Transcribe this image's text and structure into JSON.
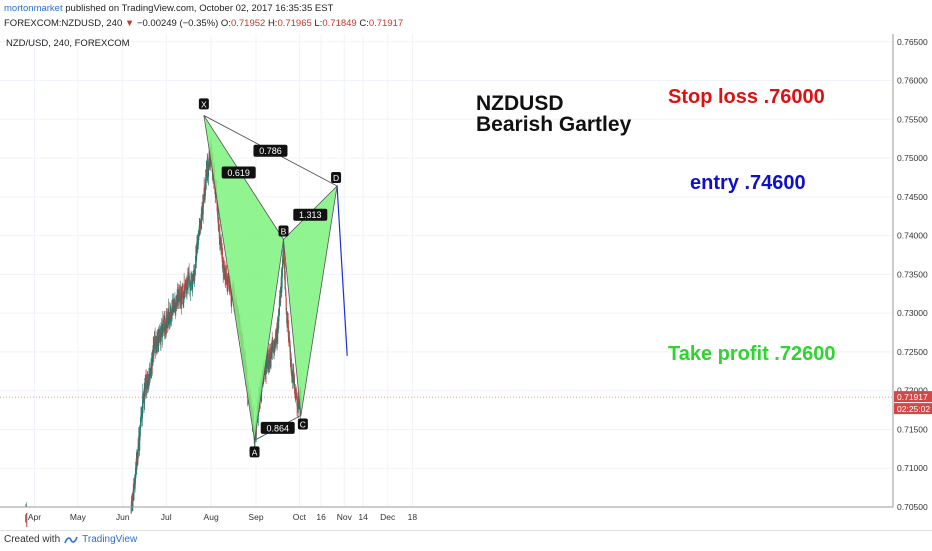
{
  "header": {
    "username": "mortonmarket",
    "published_text": "published on TradingView.com, October 02, 2017 16:35:35 EST",
    "symbol_interval": "FOREXCOM:NZDUSD, 240",
    "change_arrow": "▼",
    "change": "−0.00249 (−0.35%)",
    "open_label": "O:",
    "open": "0.71952",
    "high_label": "H:",
    "high": "0.71965",
    "low_label": "L:",
    "low": "0.71849",
    "close_label": "C:",
    "close": "0.71917"
  },
  "footer": {
    "created_with": "Created with",
    "brand": "TradingView"
  },
  "chart_data": {
    "type": "candlestick",
    "legend": "NZD/USD, 240, FOREXCOM",
    "ylim": [
      0.705,
      0.766
    ],
    "y_ticks": [
      "0.76500",
      "0.76000",
      "0.75500",
      "0.75000",
      "0.74500",
      "0.74000",
      "0.73500",
      "0.73000",
      "0.72500",
      "0.72000",
      "0.71500",
      "0.71000",
      "0.70500"
    ],
    "x_ticks": [
      "Apr",
      "May",
      "Jun",
      "Jul",
      "Aug",
      "Sep",
      "Oct",
      "16",
      "Nov",
      "14",
      "Dec",
      "18"
    ],
    "current_price_label": "0.71917",
    "countdown_label": "02:25:02",
    "current_price": 0.71917,
    "pattern": {
      "title_line1": "NZDUSD",
      "title_line2": "Bearish Gartley",
      "points": [
        {
          "name": "X",
          "date": "Jul 27",
          "price": 0.7555
        },
        {
          "name": "A",
          "date": "Aug 31",
          "price": 0.7136
        },
        {
          "name": "B",
          "date": "Sep 20",
          "price": 0.7395
        },
        {
          "name": "C",
          "date": "Oct 2",
          "price": 0.7168
        },
        {
          "name": "D",
          "date": "Oct 27",
          "price": 0.7464
        }
      ],
      "ratios": [
        {
          "label": "0.619",
          "between": "XA-AB"
        },
        {
          "label": "1.313",
          "between": "BC-CD"
        },
        {
          "label": "0.786",
          "between": "XA-XD"
        },
        {
          "label": "0.864",
          "between": "AB-AC"
        }
      ],
      "projection_target": {
        "date": "Nov 3",
        "price": 0.7245
      }
    },
    "annotations": {
      "stop_loss": "Stop loss .76000",
      "entry": "entry .74600",
      "take_profit": "Take profit .72600"
    },
    "colors": {
      "pattern_fill": "#7cf27c",
      "up_candle": "#1f7a6d",
      "down_candle": "#c44a4a",
      "stop_loss": "#e01010",
      "entry": "#1010c8",
      "take_profit": "#2ed52e",
      "price_line": "#e0744a"
    }
  }
}
